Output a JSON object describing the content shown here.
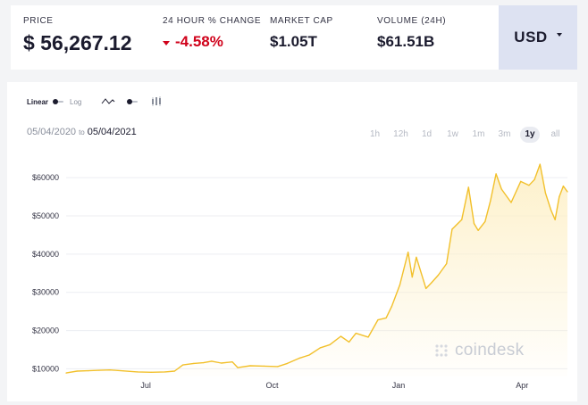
{
  "stats": {
    "price": {
      "label": "PRICE",
      "value": "$ 56,267.12"
    },
    "change": {
      "label": "24 HOUR % CHANGE",
      "value": "-4.58%",
      "direction": "down",
      "color": "#d0021b"
    },
    "market_cap": {
      "label": "MARKET CAP",
      "value": "$1.05T"
    },
    "volume": {
      "label": "VOLUME (24H)",
      "value": "$61.51B"
    }
  },
  "currency": {
    "selected": "USD",
    "icon": "chevron-down-icon"
  },
  "controls": {
    "scale_linear": "Linear",
    "scale_log": "Log",
    "scale_selected": "Linear",
    "chart_types": [
      "line-chart-icon",
      "candlestick-chart-icon"
    ]
  },
  "date_range": {
    "start": "05/04/2020",
    "to": "to",
    "end": "05/04/2021"
  },
  "ranges": [
    {
      "label": "1h",
      "active": false
    },
    {
      "label": "12h",
      "active": false
    },
    {
      "label": "1d",
      "active": false
    },
    {
      "label": "1w",
      "active": false
    },
    {
      "label": "1m",
      "active": false
    },
    {
      "label": "3m",
      "active": false
    },
    {
      "label": "1y",
      "active": true
    },
    {
      "label": "all",
      "active": false
    }
  ],
  "watermark": {
    "text": "coindesk"
  },
  "chart_data": {
    "type": "area",
    "line_color": "#f2c02b",
    "fill_color": "#fdf0c8",
    "ylim": [
      8000,
      64000
    ],
    "xlim": [
      "2020-05-04",
      "2021-05-04"
    ],
    "y_ticks": [
      {
        "value": 10000,
        "label": "$10000"
      },
      {
        "value": 20000,
        "label": "$20000"
      },
      {
        "value": 30000,
        "label": "$30000"
      },
      {
        "value": 40000,
        "label": "$40000"
      },
      {
        "value": 50000,
        "label": "$50000"
      },
      {
        "value": 60000,
        "label": "$60000"
      }
    ],
    "x_ticks": [
      {
        "date": "2020-07-01",
        "label": "Jul"
      },
      {
        "date": "2020-10-01",
        "label": "Oct"
      },
      {
        "date": "2021-01-01",
        "label": "Jan"
      },
      {
        "date": "2021-04-01",
        "label": "Apr"
      }
    ],
    "grid": true,
    "series": [
      {
        "points": [
          [
            "2020-05-04",
            8900
          ],
          [
            "2020-05-12",
            9400
          ],
          [
            "2020-05-20",
            9500
          ],
          [
            "2020-05-28",
            9600
          ],
          [
            "2020-06-05",
            9700
          ],
          [
            "2020-06-15",
            9450
          ],
          [
            "2020-06-25",
            9200
          ],
          [
            "2020-07-05",
            9100
          ],
          [
            "2020-07-15",
            9200
          ],
          [
            "2020-07-22",
            9400
          ],
          [
            "2020-07-28",
            11000
          ],
          [
            "2020-08-05",
            11400
          ],
          [
            "2020-08-12",
            11600
          ],
          [
            "2020-08-18",
            12000
          ],
          [
            "2020-08-25",
            11500
          ],
          [
            "2020-09-02",
            11800
          ],
          [
            "2020-09-06",
            10300
          ],
          [
            "2020-09-15",
            10800
          ],
          [
            "2020-09-25",
            10700
          ],
          [
            "2020-10-05",
            10600
          ],
          [
            "2020-10-12",
            11400
          ],
          [
            "2020-10-21",
            12800
          ],
          [
            "2020-10-28",
            13600
          ],
          [
            "2020-11-05",
            15500
          ],
          [
            "2020-11-12",
            16300
          ],
          [
            "2020-11-20",
            18500
          ],
          [
            "2020-11-26",
            17000
          ],
          [
            "2020-12-01",
            19300
          ],
          [
            "2020-12-10",
            18300
          ],
          [
            "2020-12-17",
            22800
          ],
          [
            "2020-12-23",
            23300
          ],
          [
            "2020-12-27",
            26300
          ],
          [
            "2021-01-02",
            32000
          ],
          [
            "2021-01-08",
            40500
          ],
          [
            "2021-01-11",
            34000
          ],
          [
            "2021-01-14",
            39200
          ],
          [
            "2021-01-21",
            31000
          ],
          [
            "2021-01-25",
            32500
          ],
          [
            "2021-01-30",
            34500
          ],
          [
            "2021-02-05",
            37500
          ],
          [
            "2021-02-09",
            46500
          ],
          [
            "2021-02-16",
            49000
          ],
          [
            "2021-02-21",
            57500
          ],
          [
            "2021-02-25",
            48000
          ],
          [
            "2021-02-28",
            46200
          ],
          [
            "2021-03-05",
            48500
          ],
          [
            "2021-03-09",
            54000
          ],
          [
            "2021-03-13",
            61000
          ],
          [
            "2021-03-17",
            57000
          ],
          [
            "2021-03-24",
            53500
          ],
          [
            "2021-03-31",
            59000
          ],
          [
            "2021-04-06",
            58000
          ],
          [
            "2021-04-10",
            59500
          ],
          [
            "2021-04-14",
            63500
          ],
          [
            "2021-04-18",
            56000
          ],
          [
            "2021-04-22",
            51500
          ],
          [
            "2021-04-25",
            49000
          ],
          [
            "2021-04-28",
            55000
          ],
          [
            "2021-05-01",
            57800
          ],
          [
            "2021-05-04",
            56300
          ]
        ]
      }
    ]
  }
}
